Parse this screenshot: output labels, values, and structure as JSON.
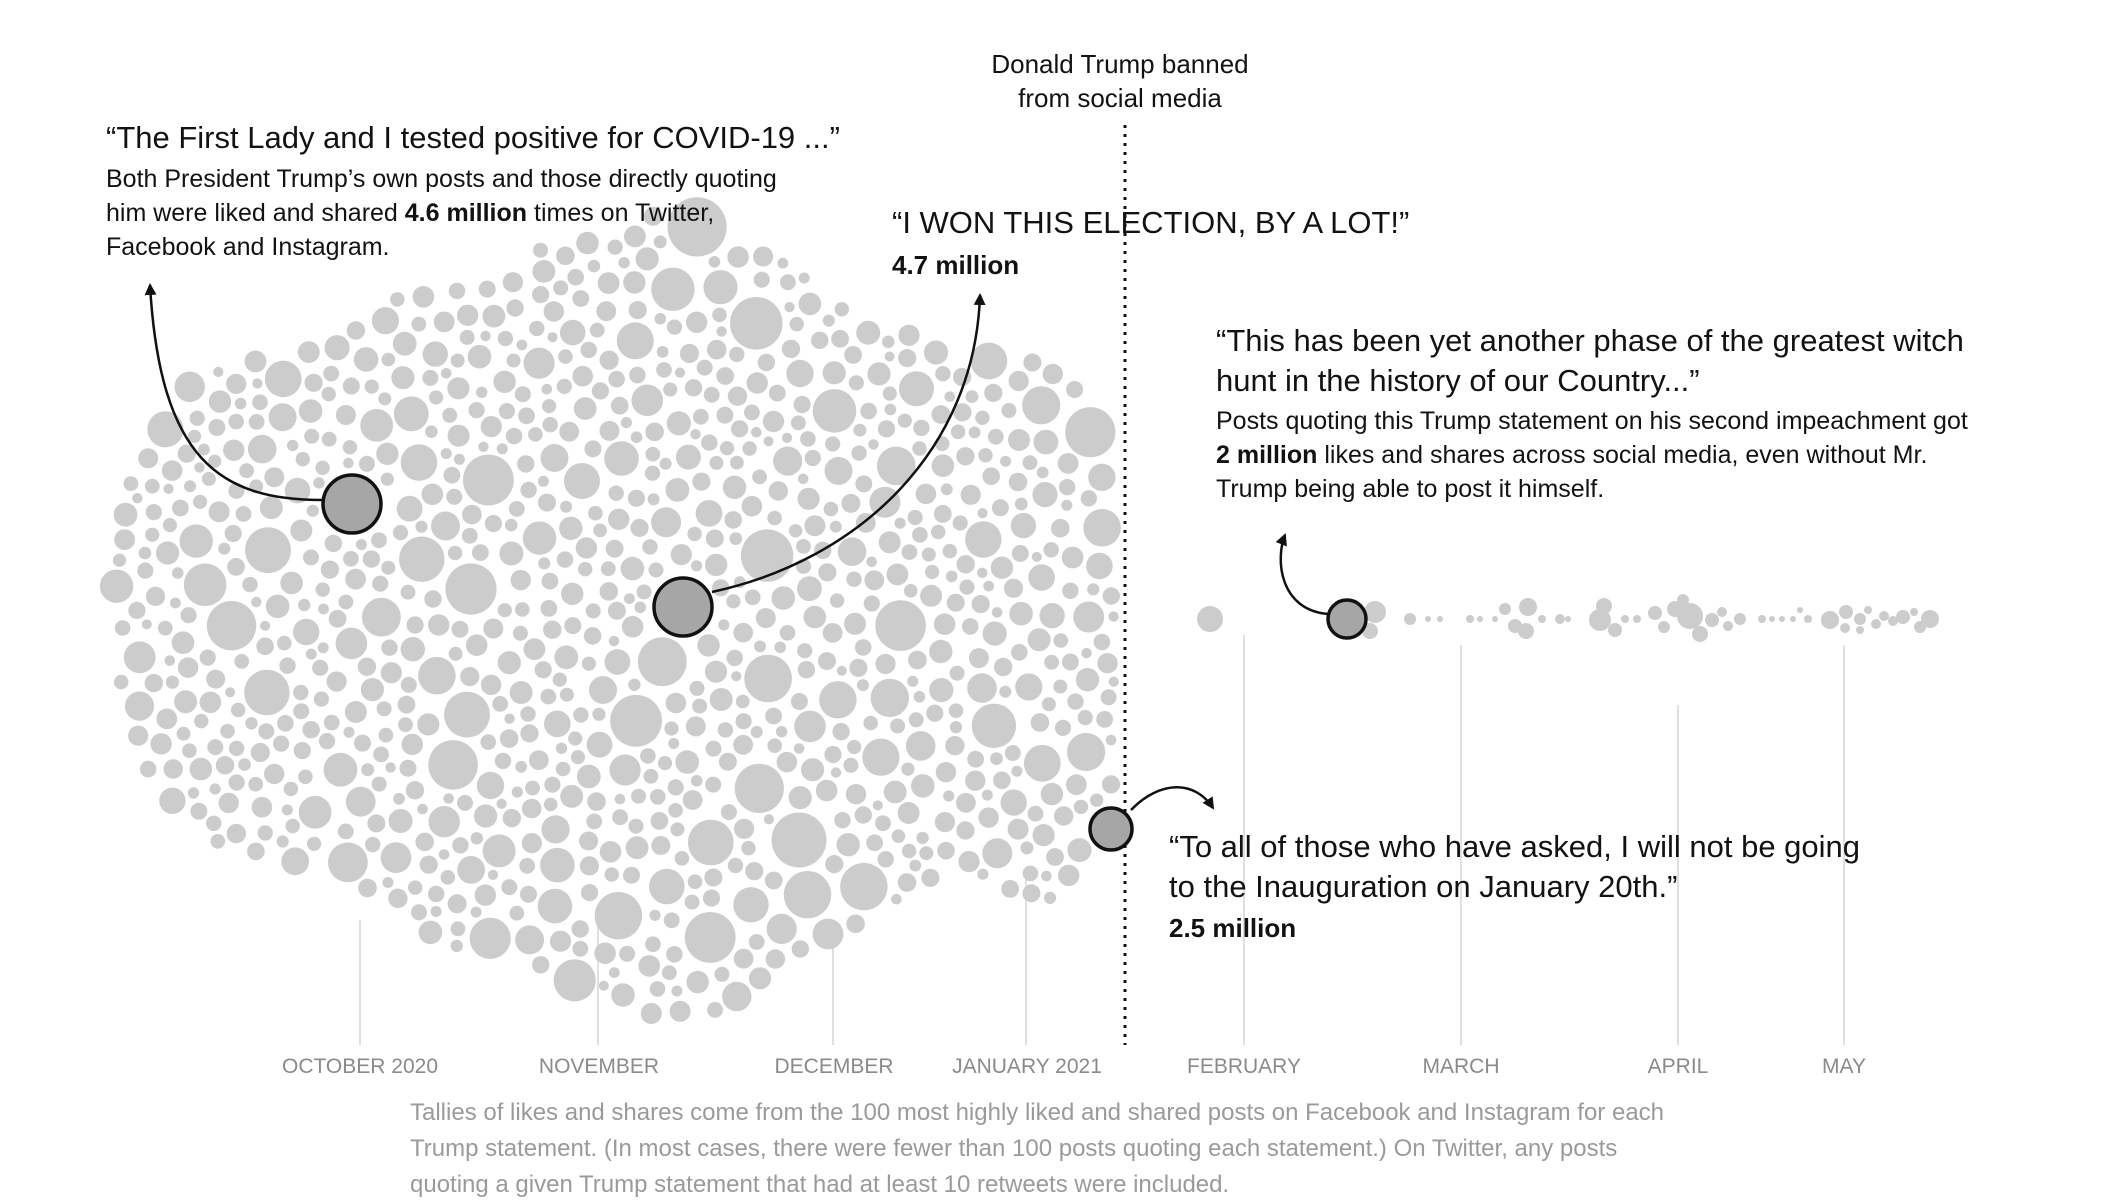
{
  "event": {
    "line1": "Donald Trump banned",
    "line2": "from social media"
  },
  "annotations": {
    "covid": {
      "quote": "“The First Lady and I tested positive for COVID-19 ...”",
      "body_pre": "Both President Trump’s own posts and those directly quoting him were liked and shared ",
      "body_value": "4.6 million",
      "body_post": " times on Twitter, Facebook and Instagram."
    },
    "election": {
      "quote": "“I WON THIS ELECTION, BY A LOT!”",
      "value": "4.7 million"
    },
    "witch_hunt": {
      "quote": "“This has been yet another phase of the greatest witch hunt in the history of our Country...”",
      "body_pre": "Posts quoting this Trump statement on his second impeachment got ",
      "body_value": "2 million",
      "body_post": " likes and shares across social media, even without Mr. Trump being able to post it himself."
    },
    "inauguration": {
      "quote": "“To all of those who have asked, I will not be going to the Inauguration on January 20th.”",
      "value": "2.5 million"
    }
  },
  "footnote": "Tallies of likes and shares come from the 100 most highly liked and shared posts on Facebook and Instagram for each Trump statement. (In most cases, there were fewer than 100 posts quoting each statement.) On Twitter, any posts quoting a given Trump statement that had at least 10 retweets were included.",
  "chart_data": {
    "type": "scatter",
    "description_of_marks": "packed bubbles; each bubble is one Trump statement sized by likes and shares",
    "x_axis": {
      "tick_labels": [
        "OCTOBER 2020",
        "NOVEMBER",
        "DECEMBER",
        "JANUARY 2021",
        "FEBRUARY",
        "MARCH",
        "APRIL",
        "MAY"
      ]
    },
    "event_marker": {
      "label": "Donald Trump banned from social media"
    },
    "highlighted_points": [
      {
        "statement": "“The First Lady and I tested positive for COVID-19 ...”",
        "likes_and_shares_millions": 4.6
      },
      {
        "statement": "“I WON THIS ELECTION, BY A LOT!”",
        "likes_and_shares_millions": 4.7
      },
      {
        "statement": "“To all of those who have asked, I will not be going to the Inauguration on January 20th.”",
        "likes_and_shares_millions": 2.5
      },
      {
        "statement": "“This has been yet another phase of the greatest witch hunt in the history of our Country...”",
        "likes_and_shares_millions": 2.0
      }
    ],
    "colors": {
      "bubble": "#cccccc",
      "highlight": "#a6a6a6",
      "highlight_stroke": "#111111",
      "axis_line": "#e0e0e0",
      "tick_label": "#8a8a8a",
      "footnote": "#9a9a9a"
    }
  }
}
